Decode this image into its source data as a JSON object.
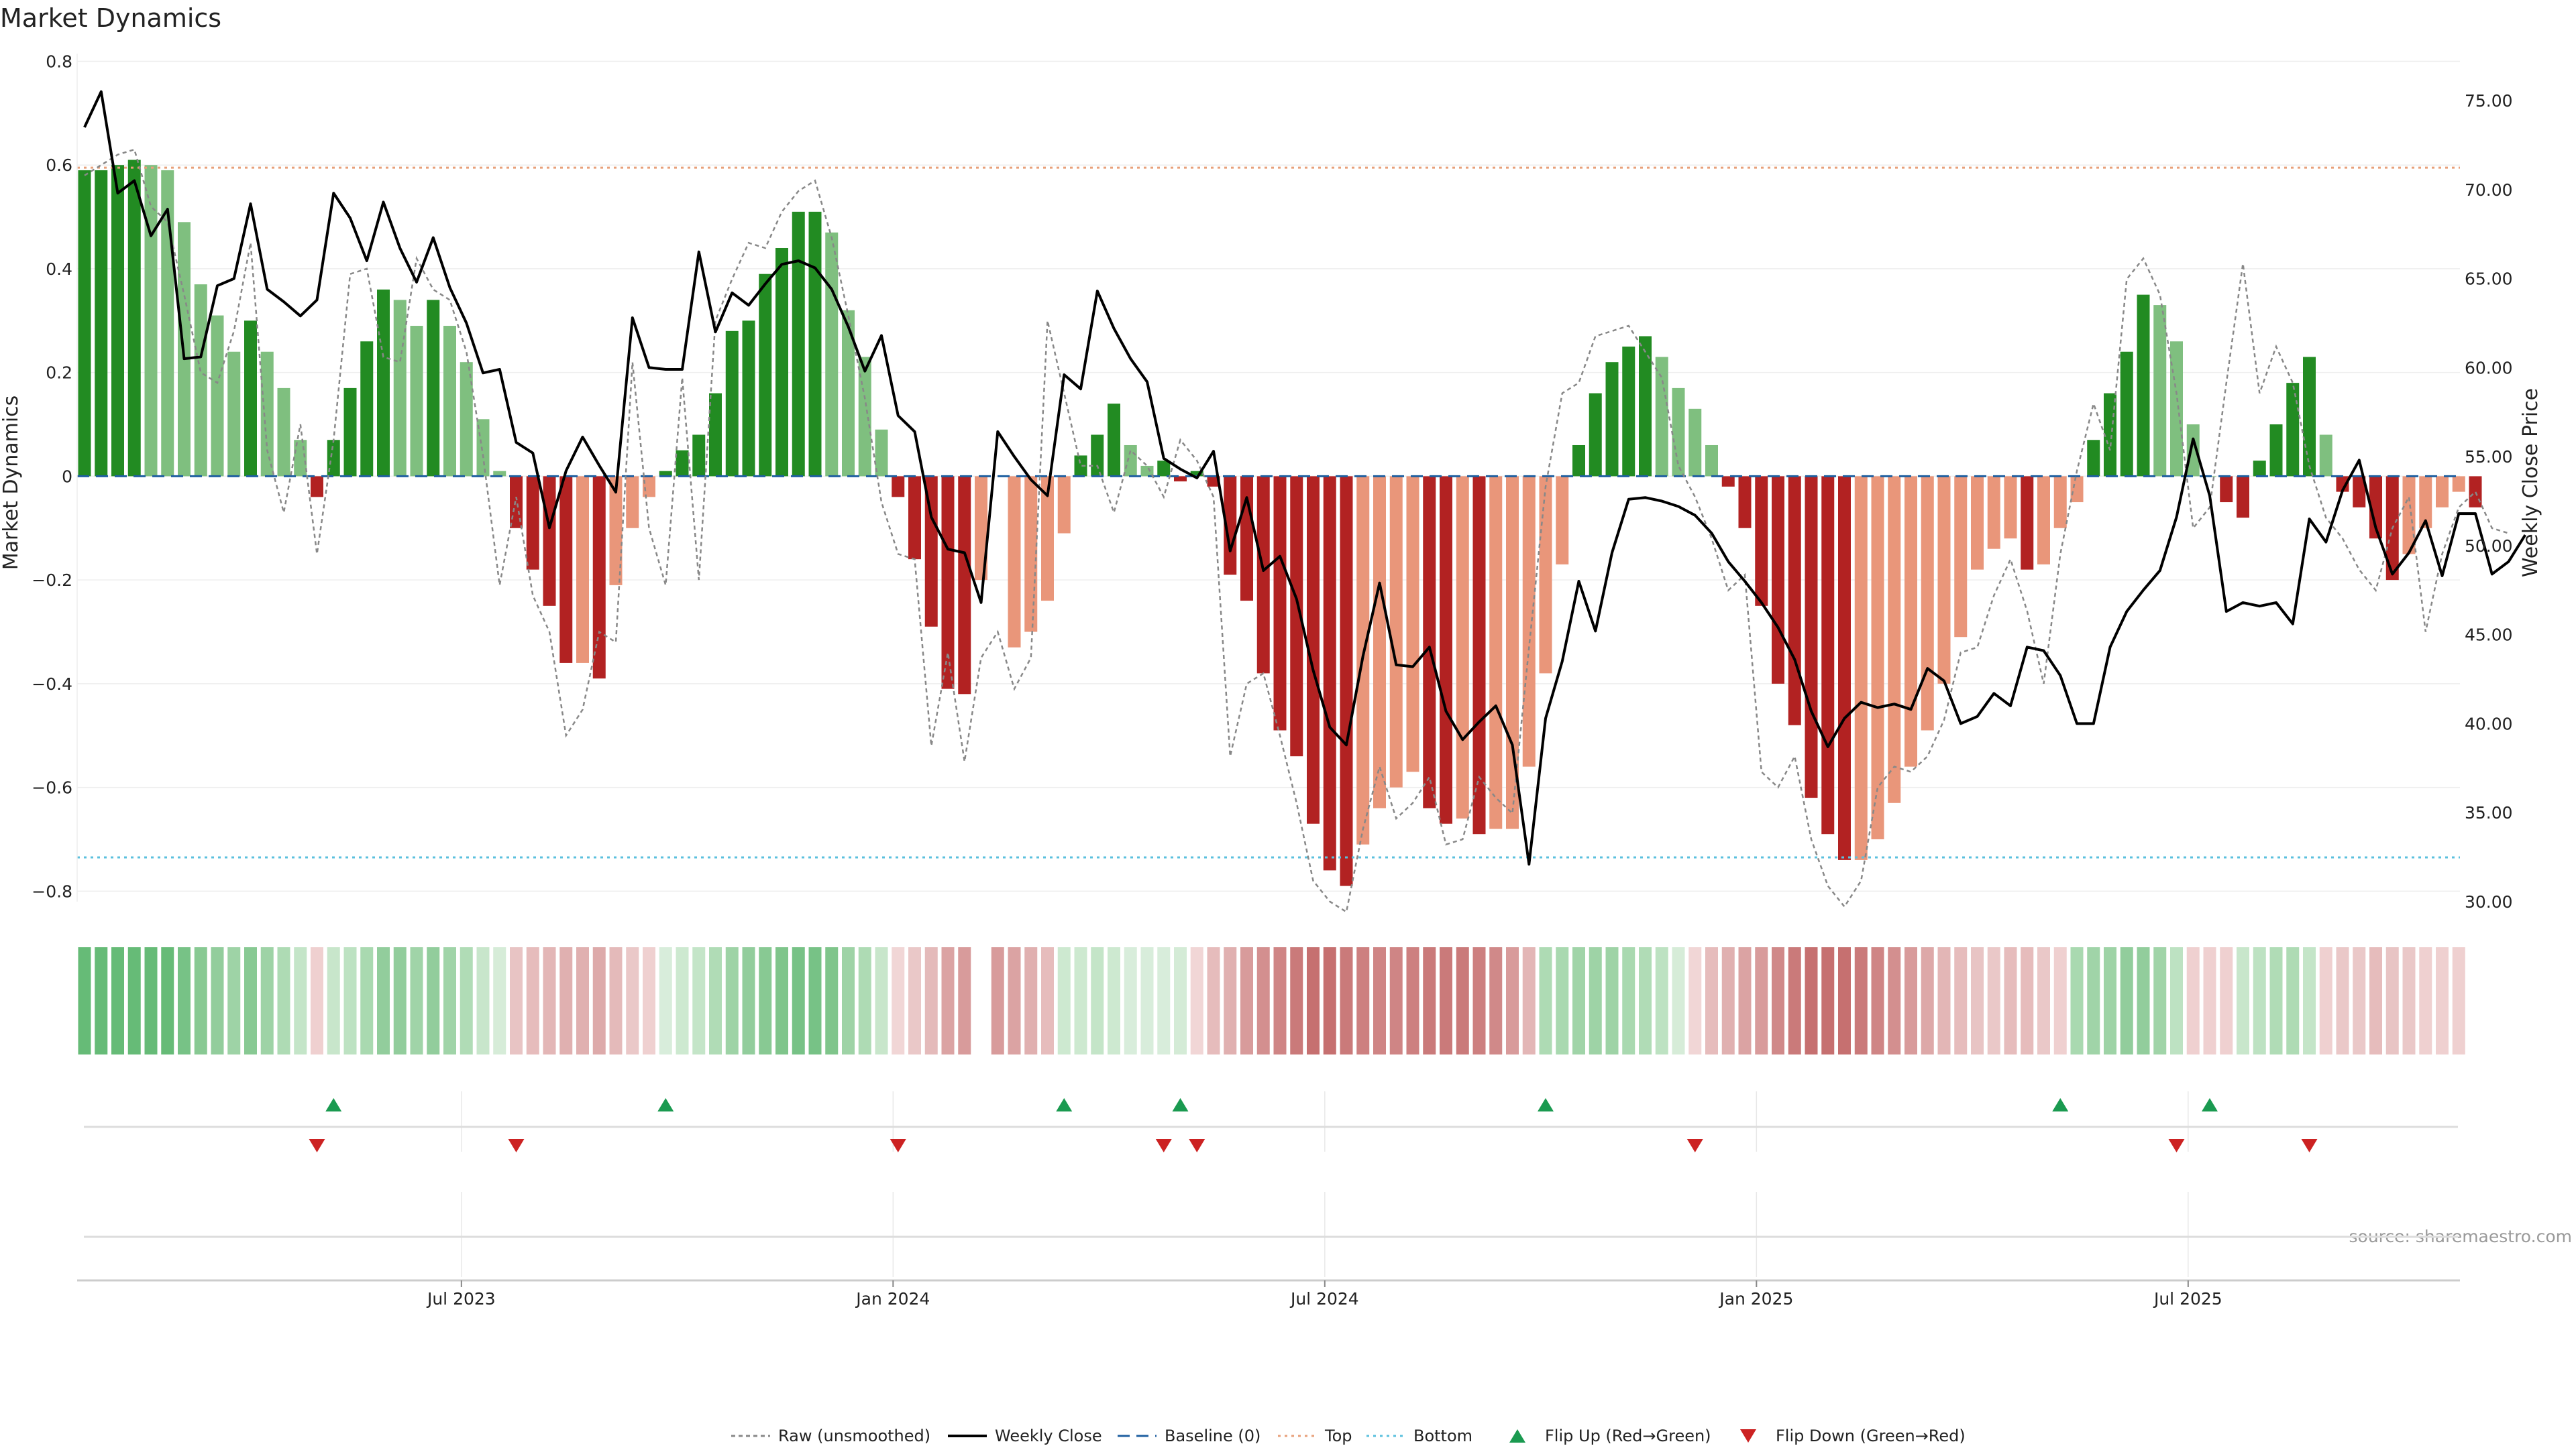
{
  "chart_data": {
    "type": "bar",
    "title": "Market Dynamics",
    "ylabel_left": "Market Dynamics",
    "ylabel_right": "Weekly Close Price",
    "source": "source: sharemaestro.com",
    "y_left_range": [
      -0.85,
      0.82
    ],
    "y_left_ticks": [
      "0.8",
      "0.6",
      "0.4",
      "0.2",
      "0",
      "−0.2",
      "−0.4",
      "−0.6",
      "−0.8"
    ],
    "y_left_tick_values": [
      0.8,
      0.6,
      0.4,
      0.2,
      0,
      -0.2,
      -0.4,
      -0.6,
      -0.8
    ],
    "y_right_ticks": [
      "75.00",
      "70.00",
      "65.00",
      "60.00",
      "55.00",
      "50.00",
      "45.00",
      "40.00",
      "35.00",
      "30.00"
    ],
    "y_right_tick_values": [
      75,
      70,
      65,
      60,
      55,
      50,
      45,
      40,
      35,
      30
    ],
    "x_ticks": [
      "Jul 2023",
      "Jan 2024",
      "Jul 2024",
      "Jan 2025",
      "Jul 2025"
    ],
    "x_tick_weeks": [
      22,
      48,
      74,
      100,
      126
    ],
    "top_level": 0.595,
    "bottom_level": -0.735,
    "baseline": 0,
    "dynamics": [
      0.59,
      0.59,
      0.6,
      0.61,
      0.6,
      0.59,
      0.49,
      0.37,
      0.31,
      0.24,
      0.3,
      0.24,
      0.17,
      0.07,
      -0.04,
      0.07,
      0.17,
      0.26,
      0.36,
      0.34,
      0.29,
      0.34,
      0.29,
      0.22,
      0.11,
      0.01,
      -0.1,
      -0.18,
      -0.25,
      -0.36,
      -0.36,
      -0.39,
      -0.21,
      -0.1,
      -0.04,
      0.01,
      0.05,
      0.08,
      0.16,
      0.28,
      0.3,
      0.39,
      0.44,
      0.51,
      0.51,
      0.47,
      0.32,
      0.23,
      0.09,
      -0.04,
      -0.16,
      -0.29,
      -0.41,
      -0.42,
      -0.2,
      null,
      -0.33,
      -0.3,
      -0.24,
      -0.11,
      0.04,
      0.08,
      0.14,
      0.06,
      0.02,
      0.03,
      -0.01,
      0.01,
      -0.02,
      -0.19,
      -0.24,
      -0.38,
      -0.49,
      -0.54,
      -0.67,
      -0.76,
      -0.79,
      -0.71,
      -0.64,
      -0.6,
      -0.57,
      -0.64,
      -0.67,
      -0.66,
      -0.69,
      -0.68,
      -0.68,
      -0.56,
      -0.38,
      -0.17,
      0.06,
      0.16,
      0.22,
      0.25,
      0.27,
      0.23,
      0.17,
      0.13,
      0.06,
      -0.02,
      -0.1,
      -0.25,
      -0.4,
      -0.48,
      -0.62,
      -0.69,
      -0.74,
      -0.74,
      -0.7,
      -0.63,
      -0.56,
      -0.49,
      -0.4,
      -0.31,
      -0.18,
      -0.14,
      -0.12,
      -0.18,
      -0.17,
      -0.1,
      -0.05,
      0.07,
      0.16,
      0.24,
      0.35,
      0.33,
      0.26,
      0.1,
      0,
      -0.05,
      -0.08,
      0.03,
      0.1,
      0.18,
      0.23,
      0.08,
      -0.03,
      -0.06,
      -0.12,
      -0.2,
      -0.15,
      -0.1,
      -0.06,
      -0.03,
      -0.06
    ],
    "raw": [
      0.58,
      0.6,
      0.62,
      0.63,
      0.52,
      0.49,
      0.35,
      0.2,
      0.18,
      0.28,
      0.45,
      0.05,
      -0.07,
      0.1,
      -0.15,
      0.07,
      0.39,
      0.4,
      0.23,
      0.22,
      0.42,
      0.36,
      0.34,
      0.24,
      0.04,
      -0.21,
      -0.04,
      -0.23,
      -0.3,
      -0.5,
      -0.45,
      -0.3,
      -0.32,
      0.22,
      -0.1,
      -0.21,
      0.19,
      -0.2,
      0.3,
      0.38,
      0.45,
      0.44,
      0.51,
      0.55,
      0.57,
      0.46,
      0.31,
      0.15,
      -0.05,
      -0.15,
      -0.16,
      -0.52,
      -0.34,
      -0.55,
      -0.35,
      -0.3,
      -0.41,
      -0.35,
      0.3,
      0.16,
      0.02,
      0.02,
      -0.07,
      0.05,
      0.02,
      -0.04,
      0.07,
      0.03,
      -0.04,
      -0.54,
      -0.4,
      -0.38,
      -0.5,
      -0.63,
      -0.78,
      -0.82,
      -0.84,
      -0.68,
      -0.56,
      -0.66,
      -0.63,
      -0.58,
      -0.71,
      -0.7,
      -0.58,
      -0.62,
      -0.65,
      -0.33,
      -0.02,
      0.16,
      0.18,
      0.27,
      0.28,
      0.29,
      0.24,
      0.19,
      0.02,
      -0.04,
      -0.12,
      -0.22,
      -0.19,
      -0.57,
      -0.6,
      -0.54,
      -0.7,
      -0.79,
      -0.83,
      -0.78,
      -0.6,
      -0.56,
      -0.57,
      -0.54,
      -0.47,
      -0.34,
      -0.33,
      -0.23,
      -0.16,
      -0.26,
      -0.4,
      -0.15,
      0.01,
      0.14,
      0.05,
      0.38,
      0.42,
      0.35,
      0.16,
      -0.1,
      -0.06,
      0.18,
      0.41,
      0.16,
      0.25,
      0.18,
      0.02,
      -0.08,
      -0.12,
      -0.18,
      -0.22,
      -0.1,
      -0.04,
      -0.3,
      -0.15,
      -0.06,
      -0.03,
      -0.1,
      -0.11
    ],
    "weekly_close": [
      73.5,
      75.5,
      69.8,
      70.5,
      67.4,
      68.9,
      60.5,
      60.6,
      64.6,
      65,
      69.2,
      64.4,
      63.7,
      62.9,
      63.8,
      69.8,
      68.4,
      66,
      69.3,
      66.7,
      64.8,
      67.3,
      64.5,
      62.5,
      59.7,
      59.9,
      55.8,
      55.2,
      51,
      54.2,
      56.1,
      54.5,
      53,
      62.8,
      60,
      59.9,
      59.9,
      66.5,
      62,
      64.2,
      63.5,
      64.7,
      65.8,
      66,
      65.6,
      64.4,
      62.3,
      59.8,
      61.8,
      57.3,
      56.4,
      51.6,
      49.8,
      49.6,
      46.8,
      56.4,
      55,
      53.7,
      52.8,
      59.6,
      58.8,
      64.3,
      62.2,
      60.5,
      59.2,
      54.9,
      54.3,
      53.8,
      55.3,
      49.7,
      52.7,
      48.6,
      49.4,
      47,
      43,
      39.8,
      38.8,
      43.8,
      47.9,
      43.3,
      43.2,
      44.3,
      40.7,
      39.1,
      40.1,
      41,
      38.8,
      32.1,
      40.3,
      43.5,
      48,
      45.2,
      49.6,
      52.6,
      52.7,
      52.5,
      52.2,
      51.7,
      50.7,
      49.1,
      48,
      46.8,
      45.4,
      43.6,
      40.7,
      38.7,
      40.3,
      41.2,
      40.9,
      41.1,
      40.8,
      43.1,
      42.4,
      40,
      40.4,
      41.7,
      41,
      44.3,
      44.1,
      42.7,
      40,
      40,
      44.3,
      46.3,
      47.5,
      48.6,
      51.6,
      56,
      52.8,
      46.3,
      46.8,
      46.6,
      46.8,
      45.6,
      51.5,
      50.2,
      53.1,
      54.8,
      51,
      48.4,
      49.6,
      51.4,
      48.3,
      51.8,
      51.8,
      48.4,
      49.1,
      50.6
    ],
    "regime_shades": [
      "#66bb77",
      "#66bb77",
      "#66bb77",
      "#66bb77",
      "#66bb77",
      "#66bb77",
      "#77c286",
      "#88c993",
      "#92cd9c",
      "#9ed3a6",
      "#88c993",
      "#9ed3a6",
      "#aedbb4",
      "#c4e5c8",
      "#efd0d0",
      "#c8e6cb",
      "#bde2c2",
      "#a9d9b0",
      "#92cd9c",
      "#92cd9c",
      "#a0d4a8",
      "#92cd9c",
      "#a0d4a8",
      "#b0dcb6",
      "#c8e6cb",
      "#d6ecd8",
      "#e8c4c4",
      "#e6bcbc",
      "#e3b6b6",
      "#e0b0b0",
      "#e0b0b0",
      "#ddaaaa",
      "#e4baba",
      "#eac8c8",
      "#efd0d0",
      "#d8eddb",
      "#cde9d0",
      "#c4e5c8",
      "#b0dcb6",
      "#9ed3a6",
      "#92cd9c",
      "#88c993",
      "#7fc58b",
      "#77c286",
      "#77c286",
      "#7fc58b",
      "#9ed3a6",
      "#aedbb4",
      "#c8e6cb",
      "#f1d6d6",
      "#eac8c8",
      "#e4baba",
      "#dba3a3",
      "#d89b9b",
      null,
      "#d89b9b",
      "#dba3a3",
      "#e0b0b0",
      "#e6bcbc",
      "#cde9d0",
      "#cde9d0",
      "#c4e5c8",
      "#cde9d0",
      "#d8eddb",
      "#d8eddb",
      "#d8eddb",
      "#d4ebd6",
      "#f1d6d6",
      "#e6bcbc",
      "#e0b0b0",
      "#d89b9b",
      "#d38f8f",
      "#cf8585",
      "#ca7a7a",
      "#c67070",
      "#c67070",
      "#ca7a7a",
      "#cd8080",
      "#cf8585",
      "#cf8585",
      "#cd8080",
      "#ca7a7a",
      "#ca7a7a",
      "#ca7a7a",
      "#cd8080",
      "#d08989",
      "#d89b9b",
      "#e3b6b6",
      "#aedbb4",
      "#a9d9b0",
      "#a0d4a8",
      "#9ed3a6",
      "#9ed3a6",
      "#a9d9b0",
      "#b0dcb6",
      "#bde2c2",
      "#d6ecd8",
      "#f1d6d6",
      "#e6bcbc",
      "#e0b0b0",
      "#dba3a3",
      "#d89b9b",
      "#d08989",
      "#ca7a7a",
      "#c67070",
      "#c67070",
      "#c67070",
      "#ca7a7a",
      "#cf8585",
      "#d38f8f",
      "#d89b9b",
      "#dda8a8",
      "#e3b6b6",
      "#e6bcbc",
      "#e8c4c4",
      "#eac8c8",
      "#e6bcbc",
      "#e6bcbc",
      "#eac8c8",
      "#efd0d0",
      "#a9d9b0",
      "#a0d4a8",
      "#9ed3a6",
      "#92cd9c",
      "#92cd9c",
      "#a0d4a8",
      "#bde2c2",
      "#efd0d0",
      "#efd0d0",
      "#efd0d0",
      "#c8e6cb",
      "#bde2c2",
      "#b0dcb6",
      "#aedbb4",
      "#c4e5c8",
      "#efd0d0",
      "#eac8c8",
      "#eac8c8",
      "#e6bcbc",
      "#e8c4c4",
      "#eac8c8",
      "#efd0d0",
      "#efd0d0",
      "#efd0d0"
    ],
    "flip_up_weeks": [
      15,
      35,
      59,
      66,
      88,
      119,
      128
    ],
    "flip_down_weeks": [
      14,
      26,
      49,
      65,
      67,
      97,
      126,
      134
    ],
    "colors": {
      "green_strong": "#228b22",
      "green_light": "#7fbf7f",
      "red_strong": "#b22222",
      "red_light": "#e9967a",
      "weekly_close": "#000000",
      "raw": "#888888",
      "baseline": "#1f5fa0",
      "top": "#e8a07a",
      "bottom": "#5bc0de",
      "flip_up": "#1a9a50",
      "flip_down": "#cc2222"
    },
    "legend": [
      {
        "label": "Raw (unsmoothed)",
        "style": "raw"
      },
      {
        "label": "Weekly Close",
        "style": "close"
      },
      {
        "label": "Baseline (0)",
        "style": "baseline"
      },
      {
        "label": "Top",
        "style": "top"
      },
      {
        "label": "Bottom",
        "style": "bottom"
      },
      {
        "label": "Flip Up (Red→Green)",
        "style": "flipup"
      },
      {
        "label": "Flip Down (Green→Red)",
        "style": "flipdown"
      }
    ]
  }
}
